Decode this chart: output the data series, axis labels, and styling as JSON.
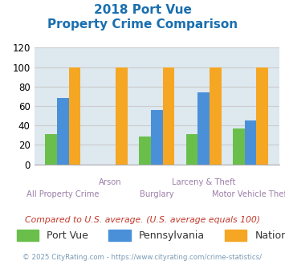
{
  "title_line1": "2018 Port Vue",
  "title_line2": "Property Crime Comparison",
  "title_color": "#1a6faf",
  "categories": [
    "All Property Crime",
    "Arson",
    "Burglary",
    "Larceny & Theft",
    "Motor Vehicle Theft"
  ],
  "port_vue": [
    31,
    0,
    29,
    31,
    37
  ],
  "pennsylvania": [
    68,
    0,
    56,
    74,
    45
  ],
  "national": [
    100,
    100,
    100,
    100,
    100
  ],
  "bar_colors": {
    "port_vue": "#6abf4b",
    "pennsylvania": "#4a90d9",
    "national": "#f5a623"
  },
  "ylim": [
    0,
    120
  ],
  "yticks": [
    0,
    20,
    40,
    60,
    80,
    100,
    120
  ],
  "grid_color": "#cccccc",
  "bg_color": "#dde8ef",
  "legend_labels": [
    "Port Vue",
    "Pennsylvania",
    "National"
  ],
  "note": "Compared to U.S. average. (U.S. average equals 100)",
  "note_color": "#c0392b",
  "footer": "© 2025 CityRating.com - https://www.cityrating.com/crime-statistics/",
  "footer_color": "#7a9ab5",
  "xlabel_color": "#9b7fa8",
  "bar_width": 0.25,
  "top_cats": [
    "Arson",
    "Larceny & Theft"
  ],
  "bot_cats": [
    "All Property Crime",
    "Burglary",
    "Motor Vehicle Theft"
  ]
}
